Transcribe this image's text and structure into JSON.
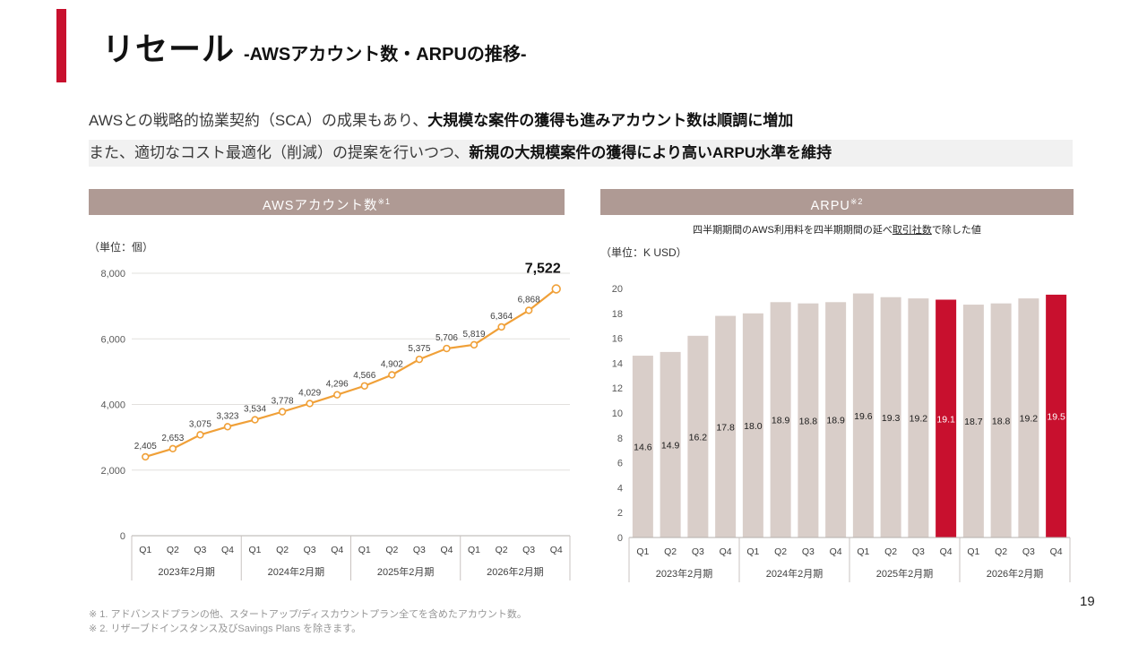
{
  "colors": {
    "accent_red": "#C8102E",
    "panel_header": "#AF9A94",
    "line_orange": "#F0A038",
    "bar_fill": "#D9CEC9",
    "intro_highlight": "#F1F1F1"
  },
  "slide": {
    "title": "リセール",
    "subtitle": "-AWSアカウント数・ARPUの推移-",
    "intro": {
      "line1_normal": "AWSとの戦略的協業契約（SCA）の成果もあり、",
      "line1_bold": "大規模な案件の獲得も進みアカウント数は順調に増加",
      "line2_normal": "また、適切なコスト最適化（削減）の提案を行いつつ、",
      "line2_bold": "新規の大規模案件の獲得により高いARPU水準を維持"
    },
    "footnotes": [
      "※ 1. アドバンスドプランの他、スタートアップ/ディスカウントプラン全てを含めたアカウント数。",
      "※ 2. リザーブドインスタンス及びSavings Plans を除きます。"
    ],
    "page_number": "19"
  },
  "chart_data": [
    {
      "type": "line",
      "title": "AWSアカウント数",
      "title_note": "※1",
      "unit_label": "（単位：個）",
      "categories": [
        "Q1",
        "Q2",
        "Q3",
        "Q4",
        "Q1",
        "Q2",
        "Q3",
        "Q4",
        "Q1",
        "Q2",
        "Q3",
        "Q4",
        "Q1",
        "Q2",
        "Q3",
        "Q4"
      ],
      "groups": [
        "2023年2月期",
        "2024年2月期",
        "2025年2月期",
        "2026年2月期"
      ],
      "values": [
        2405,
        2653,
        3075,
        3323,
        3534,
        3778,
        4029,
        4296,
        4566,
        4902,
        5375,
        5706,
        5819,
        6364,
        6868,
        7522
      ],
      "ylim": [
        0,
        8000
      ],
      "ytick_step": 2000,
      "grid": true,
      "legend": "none"
    },
    {
      "type": "bar",
      "title": "ARPU",
      "title_note": "※2",
      "subtitle_parts": [
        "四半期期間のAWS利用料を四半期期間の延べ",
        "取引社数",
        "で除した値"
      ],
      "unit_label": "（単位：K USD）",
      "categories": [
        "Q1",
        "Q2",
        "Q3",
        "Q4",
        "Q1",
        "Q2",
        "Q3",
        "Q4",
        "Q1",
        "Q2",
        "Q3",
        "Q4",
        "Q1",
        "Q2",
        "Q3",
        "Q4"
      ],
      "groups": [
        "2023年2月期",
        "2024年2月期",
        "2025年2月期",
        "2026年2月期"
      ],
      "values": [
        14.6,
        14.9,
        16.2,
        17.8,
        18.0,
        18.9,
        18.8,
        18.9,
        19.6,
        19.3,
        19.2,
        19.1,
        18.7,
        18.8,
        19.2,
        19.5
      ],
      "highlight_indices": [
        11,
        15
      ],
      "ylim": [
        0,
        20
      ],
      "ytick_step": 2,
      "grid": false,
      "legend": "none"
    }
  ]
}
